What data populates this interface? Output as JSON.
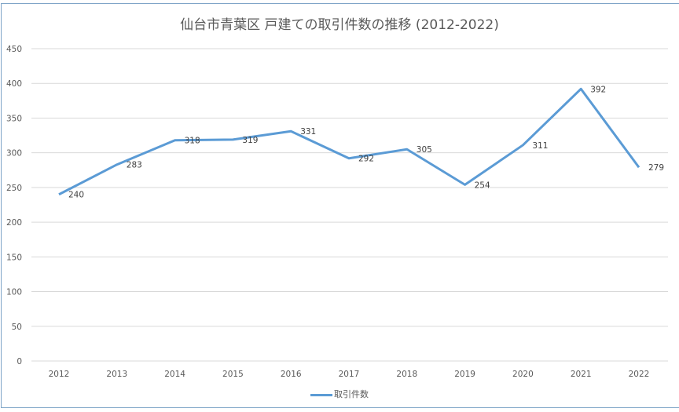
{
  "chart_data": {
    "type": "line",
    "title": "仙台市青葉区 戸建ての取引件数の推移 (2012-2022)",
    "xlabel": "",
    "ylabel": "",
    "categories": [
      "2012",
      "2013",
      "2014",
      "2015",
      "2016",
      "2017",
      "2018",
      "2019",
      "2020",
      "2021",
      "2022"
    ],
    "series": [
      {
        "name": "取引件数",
        "color": "#5b9bd5",
        "values": [
          240,
          283,
          318,
          319,
          331,
          292,
          305,
          254,
          311,
          392,
          279
        ]
      }
    ],
    "ylim": [
      0,
      450
    ],
    "yticks": [
      0,
      50,
      100,
      150,
      200,
      250,
      300,
      350,
      400,
      450
    ],
    "grid": true,
    "data_labels": true,
    "legend_position": "bottom"
  },
  "legend": {
    "label": "取引件数"
  }
}
